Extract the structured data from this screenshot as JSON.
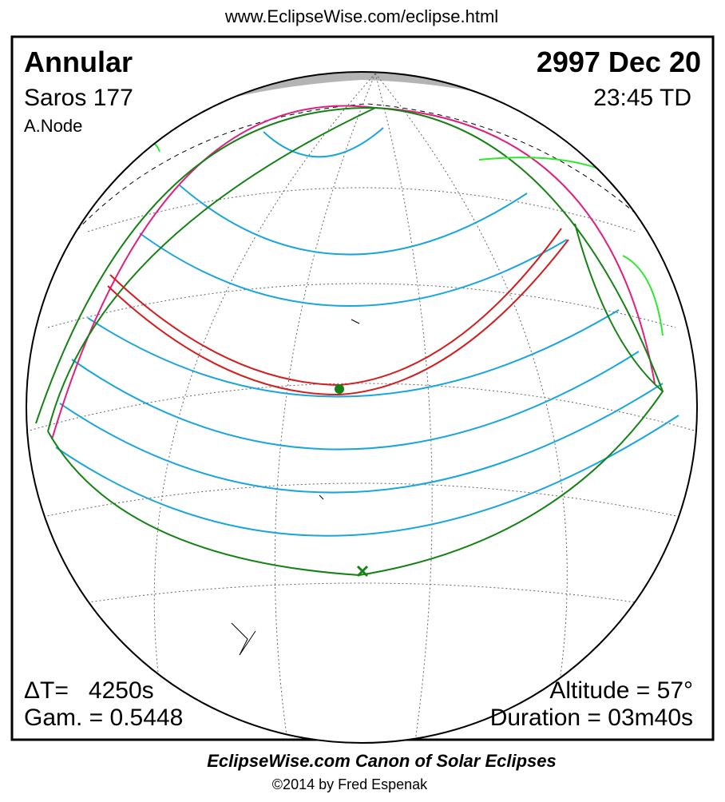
{
  "header": {
    "url": "www.EclipseWise.com/eclipse.html"
  },
  "map": {
    "eclipse_type": "Annular",
    "date": "2997 Dec 20",
    "saros": "Saros 177",
    "time": "23:45 TD",
    "node": "A.Node",
    "delta_t": "ΔT=   4250s",
    "gamma": "Gam. = 0.5448",
    "altitude": "Altitude = 57°",
    "duration": "Duration = 03m40s"
  },
  "footer": {
    "title": "EclipseWise.com Canon of Solar Eclipses",
    "copyright": "©2014 by Fred Espenak"
  }
}
